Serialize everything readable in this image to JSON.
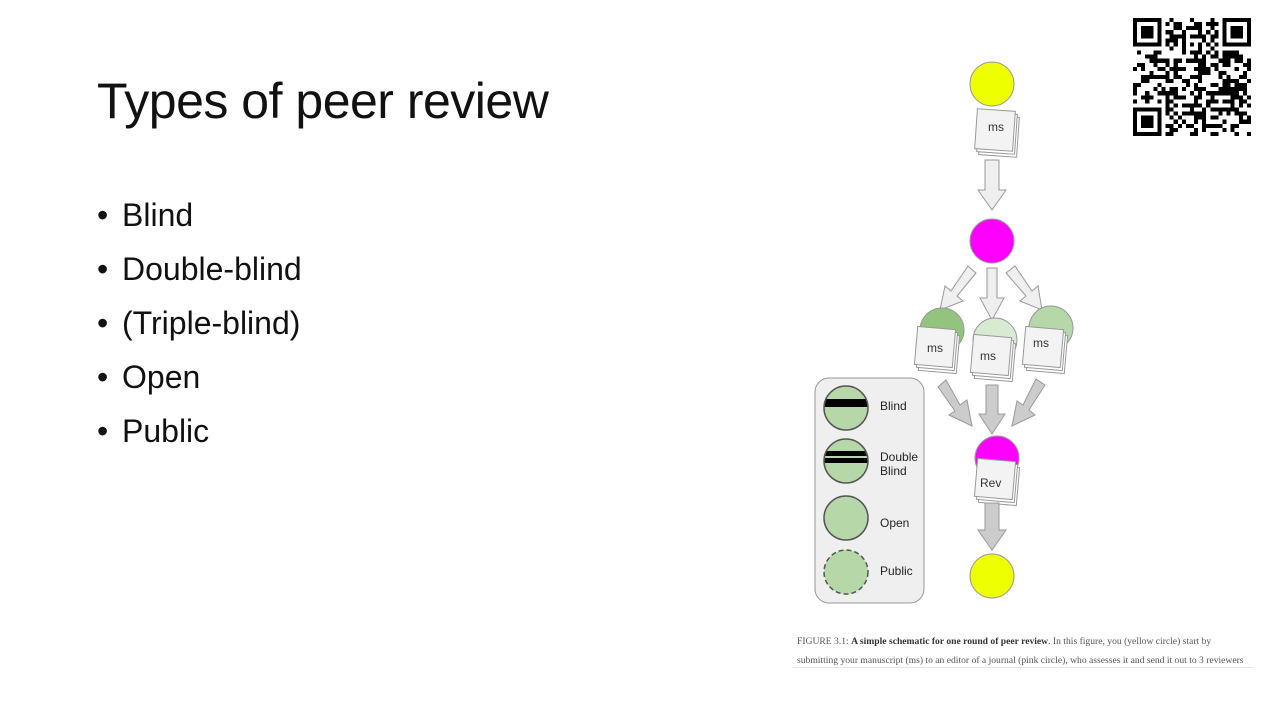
{
  "slide": {
    "title": "Types of peer review",
    "bullets": [
      "Blind",
      "Double-blind",
      "(Triple-blind)",
      "Open",
      "Public"
    ]
  },
  "figure": {
    "doc_labels": {
      "author_ms": "ms",
      "reviewer_ms_1": "ms",
      "reviewer_ms_2": "ms",
      "reviewer_ms_3": "ms",
      "review": "Rev"
    },
    "legend": {
      "blind": "Blind",
      "double_blind_line1": "Double",
      "double_blind_line2": "Blind",
      "open": "Open",
      "public": "Public"
    },
    "caption_label": "FIGURE 3.1:",
    "caption_bold": "A simple schematic for one round of peer review",
    "caption_rest": ". In this figure, you (yellow circle) start by",
    "caption_line2": "submitting your manuscript (ms) to an editor of a journal (pink circle), who assesses it and send it out to 3 reviewers",
    "colors": {
      "author": "#eeff00",
      "editor": "#ff00ff",
      "reviewer_dark": "#93c47d",
      "reviewer_mid": "#b6d7a8",
      "reviewer_light": "#d9ead3",
      "arrow_light": "#efefef",
      "arrow_dark": "#cccccc",
      "legend_bg": "#efefef"
    }
  },
  "qr_code": {
    "icon": "qr-code-icon"
  }
}
